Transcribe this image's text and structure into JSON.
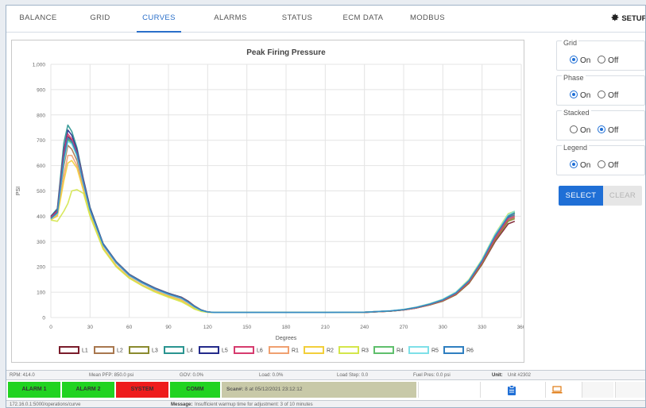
{
  "nav": {
    "tabs": [
      {
        "label": "BALANCE",
        "active": false
      },
      {
        "label": "GRID",
        "active": false
      },
      {
        "label": "CURVES",
        "active": true
      },
      {
        "label": "ALARMS",
        "active": false
      },
      {
        "label": "STATUS",
        "active": false
      },
      {
        "label": "ECM DATA",
        "active": false
      },
      {
        "label": "MODBUS",
        "active": false
      }
    ],
    "setup_label": "SETUP"
  },
  "options": {
    "grid": {
      "label": "Grid",
      "on_label": "On",
      "off_label": "Off",
      "value": "On"
    },
    "phase": {
      "label": "Phase",
      "on_label": "On",
      "off_label": "Off",
      "value": "On"
    },
    "stacked": {
      "label": "Stacked",
      "on_label": "On",
      "off_label": "Off",
      "value": "Off"
    },
    "legend": {
      "label": "Legend",
      "on_label": "On",
      "off_label": "Off",
      "value": "On"
    },
    "select_label": "SELECT",
    "clear_label": "CLEAR"
  },
  "chart_data": {
    "type": "line",
    "title": "Peak Firing Pressure",
    "xlabel": "Degrees",
    "ylabel": "PSI",
    "xlim": [
      0,
      360
    ],
    "ylim": [
      0,
      1000
    ],
    "x_ticks": [
      "0",
      "30",
      "60",
      "90",
      "120",
      "150",
      "180",
      "210",
      "240",
      "270",
      "300",
      "330",
      "360"
    ],
    "y_ticks": [
      "0",
      "100",
      "200",
      "300",
      "400",
      "500",
      "600",
      "700",
      "800",
      "900",
      "1,000"
    ],
    "grid": true,
    "legend_position": "bottom",
    "x": [
      0,
      5,
      10,
      13,
      16,
      20,
      25,
      30,
      40,
      50,
      60,
      70,
      80,
      90,
      100,
      105,
      110,
      115,
      120,
      125,
      130,
      150,
      180,
      210,
      240,
      260,
      270,
      280,
      290,
      300,
      310,
      320,
      330,
      340,
      350,
      355
    ],
    "series": [
      {
        "name": "L1",
        "color": "#7a1c2b",
        "values": [
          395,
          420,
          640,
          715,
          700,
          650,
          540,
          430,
          290,
          220,
          170,
          140,
          115,
          95,
          80,
          65,
          45,
          30,
          22,
          20,
          20,
          20,
          20,
          20,
          20,
          25,
          30,
          38,
          50,
          65,
          90,
          135,
          210,
          300,
          370,
          380
        ]
      },
      {
        "name": "L2",
        "color": "#a8774e",
        "values": [
          388,
          410,
          600,
          680,
          665,
          620,
          520,
          420,
          285,
          215,
          165,
          135,
          110,
          90,
          75,
          60,
          42,
          28,
          22,
          20,
          20,
          20,
          20,
          20,
          21,
          25,
          30,
          38,
          50,
          66,
          92,
          138,
          215,
          310,
          385,
          395
        ]
      },
      {
        "name": "L3",
        "color": "#8a8a2e",
        "values": [
          392,
          415,
          610,
          705,
          690,
          640,
          530,
          425,
          288,
          218,
          168,
          138,
          113,
          93,
          78,
          62,
          44,
          29,
          22,
          20,
          20,
          20,
          20,
          20,
          20,
          25,
          30,
          38,
          50,
          65,
          90,
          136,
          212,
          305,
          380,
          390
        ]
      },
      {
        "name": "L4",
        "color": "#2a9490",
        "values": [
          400,
          430,
          690,
          760,
          735,
          670,
          545,
          435,
          292,
          221,
          171,
          141,
          116,
          96,
          80,
          64,
          45,
          30,
          22,
          20,
          20,
          20,
          20,
          20,
          21,
          26,
          31,
          39,
          52,
          68,
          95,
          142,
          220,
          318,
          395,
          405
        ]
      },
      {
        "name": "L5",
        "color": "#232a8a",
        "values": [
          398,
          425,
          660,
          740,
          720,
          660,
          542,
          432,
          291,
          220,
          170,
          140,
          115,
          95,
          79,
          63,
          44,
          29,
          22,
          20,
          20,
          20,
          20,
          20,
          21,
          26,
          31,
          40,
          53,
          70,
          98,
          145,
          225,
          322,
          398,
          410
        ]
      },
      {
        "name": "L6",
        "color": "#d63b6e",
        "values": [
          396,
          422,
          650,
          725,
          705,
          652,
          538,
          428,
          289,
          219,
          169,
          139,
          114,
          94,
          78,
          62,
          44,
          29,
          22,
          20,
          20,
          20,
          20,
          20,
          20,
          25,
          30,
          38,
          51,
          67,
          93,
          140,
          218,
          312,
          390,
          400
        ]
      },
      {
        "name": "R1",
        "color": "#f0a070",
        "values": [
          385,
          405,
          560,
          640,
          640,
          600,
          505,
          410,
          275,
          205,
          158,
          128,
          104,
          85,
          70,
          55,
          38,
          26,
          21,
          20,
          20,
          20,
          20,
          20,
          21,
          26,
          31,
          40,
          53,
          70,
          97,
          145,
          225,
          322,
          400,
          410
        ]
      },
      {
        "name": "R2",
        "color": "#f2cf3a",
        "values": [
          387,
          400,
          540,
          610,
          620,
          590,
          500,
          405,
          272,
          203,
          156,
          126,
          102,
          83,
          66,
          50,
          35,
          25,
          21,
          20,
          20,
          20,
          20,
          20,
          21,
          26,
          31,
          40,
          54,
          71,
          99,
          148,
          228,
          328,
          405,
          418
        ]
      },
      {
        "name": "R3",
        "color": "#d4e64a",
        "values": [
          385,
          380,
          420,
          450,
          500,
          505,
          490,
          400,
          270,
          200,
          155,
          125,
          100,
          80,
          62,
          48,
          33,
          24,
          21,
          20,
          20,
          20,
          20,
          20,
          21,
          26,
          32,
          41,
          55,
          72,
          100,
          150,
          230,
          330,
          410,
          420
        ]
      },
      {
        "name": "R4",
        "color": "#5fbf6c",
        "values": [
          390,
          412,
          620,
          700,
          690,
          640,
          528,
          424,
          287,
          217,
          167,
          137,
          112,
          92,
          76,
          60,
          42,
          28,
          22,
          20,
          20,
          20,
          20,
          20,
          21,
          26,
          31,
          40,
          53,
          70,
          98,
          146,
          226,
          325,
          402,
          415
        ]
      },
      {
        "name": "R5",
        "color": "#7ee0e8",
        "values": [
          389,
          411,
          615,
          695,
          685,
          636,
          525,
          422,
          286,
          216,
          166,
          136,
          111,
          91,
          75,
          59,
          41,
          28,
          22,
          20,
          20,
          20,
          20,
          20,
          21,
          27,
          32,
          41,
          55,
          72,
          100,
          148,
          228,
          328,
          406,
          420
        ]
      },
      {
        "name": "R6",
        "color": "#2f7fc0",
        "values": [
          391,
          414,
          630,
          710,
          695,
          645,
          532,
          426,
          288,
          218,
          168,
          138,
          113,
          93,
          77,
          61,
          43,
          29,
          22,
          20,
          20,
          20,
          20,
          20,
          21,
          26,
          31,
          40,
          53,
          70,
          97,
          145,
          224,
          322,
          400,
          412
        ]
      }
    ]
  },
  "infobar": {
    "rpm": "RPM: 414.0",
    "mean_pfp": "Mean PFP: 850.0 psi",
    "gov": "GOV: 0.0%",
    "load": "Load: 0.0%",
    "load_step": "Load Step: 0.0",
    "fuel_pres": "Fuel Pres: 0.0 psi",
    "unit_label": "Unit:",
    "unit_value": "Unit #2302"
  },
  "alarms": [
    {
      "label": "ALARM 1",
      "color": "#21d321"
    },
    {
      "label": "ALARM 2",
      "color": "#21d321"
    },
    {
      "label": "SYSTEM",
      "color": "#ee1c1c"
    },
    {
      "label": "COMM",
      "color": "#21d321"
    }
  ],
  "scan": {
    "label": "Scan#:",
    "value": "8 at 05/12/2021 23:12:12"
  },
  "icons": {
    "clipboard": "clipboard-icon",
    "laptop": "laptop-icon",
    "clipboard_color": "#1f6fd6",
    "laptop_color": "#e07a12"
  },
  "statusbar": {
    "url": "172.16.0.1:5000/operations/curve",
    "message_label": "Message:",
    "message_text": "Insufficient warmup time for adjustment: 3 of 10 minutes"
  }
}
